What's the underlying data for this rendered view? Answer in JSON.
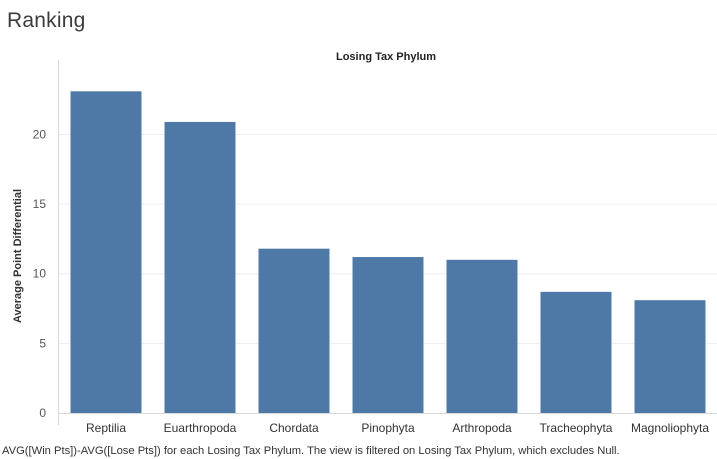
{
  "dashboard": {
    "title": "Ranking"
  },
  "caption": "AVG([Win Pts])-AVG([Lose Pts]) for each Losing Tax Phylum. The view is filtered on Losing Tax Phylum, which excludes Null.",
  "colors": {
    "bar": "#4e79a7",
    "gridline": "#eeeeee",
    "axis": "#d9d9d9"
  },
  "chart_data": {
    "type": "bar",
    "title": "Losing Tax Phylum",
    "xlabel": "",
    "ylabel": "Average Point Differential",
    "categories": [
      "Reptilia",
      "Euarthropoda",
      "Chordata",
      "Pinophyta",
      "Arthropoda",
      "Tracheophyta",
      "Magnoliophyta"
    ],
    "values": [
      23.1,
      20.9,
      11.8,
      11.2,
      11.0,
      8.7,
      8.1
    ],
    "ylim": [
      0,
      24.2
    ],
    "yticks": [
      0,
      5,
      10,
      15,
      20
    ],
    "grid": true,
    "legend": "none"
  }
}
